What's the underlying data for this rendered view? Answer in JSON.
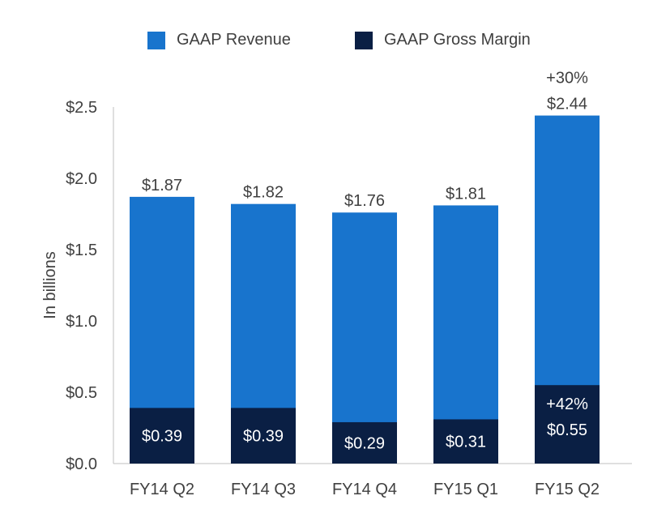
{
  "chart_data": {
    "type": "bar",
    "stacked": false,
    "overlapping_series": true,
    "categories": [
      "FY14 Q2",
      "FY14 Q3",
      "FY14 Q4",
      "FY15 Q1",
      "FY15 Q2"
    ],
    "series": [
      {
        "name": "GAAP Revenue",
        "color": "#1874cd",
        "values": [
          1.87,
          1.82,
          1.76,
          1.81,
          2.44
        ],
        "labels": [
          "$1.87",
          "$1.82",
          "$1.76",
          "$1.81",
          "$2.44"
        ]
      },
      {
        "name": "GAAP Gross Margin",
        "color": "#0a1f44",
        "values": [
          0.39,
          0.39,
          0.29,
          0.31,
          0.55
        ],
        "labels": [
          "$0.39",
          "$0.39",
          "$0.29",
          "$0.31",
          "$0.55"
        ]
      }
    ],
    "annotations": [
      {
        "category": "FY15 Q2",
        "series": "GAAP Revenue",
        "text": "+30%"
      },
      {
        "category": "FY15 Q2",
        "series": "GAAP Gross Margin",
        "text": "+42%"
      }
    ],
    "ylabel": "In billions",
    "ylim": [
      0,
      2.5
    ],
    "yticks": [
      "$0.0",
      "$0.5",
      "$1.0",
      "$1.5",
      "$2.0",
      "$2.5"
    ],
    "grid": false,
    "legend_position": "top"
  }
}
